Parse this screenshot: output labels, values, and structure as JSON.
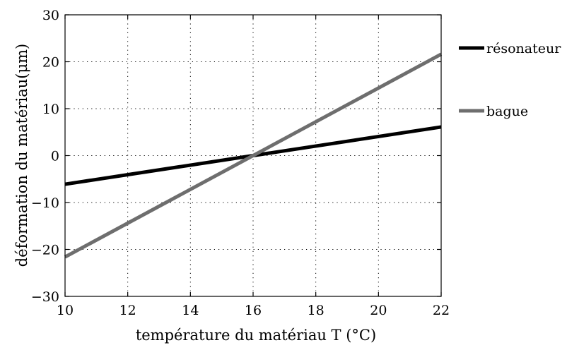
{
  "chart_data": {
    "type": "line",
    "xlabel": "température du matériau T (°C)",
    "ylabel": "déformation du matériau(μm)",
    "xlim": [
      10,
      22
    ],
    "ylim": [
      -30,
      30
    ],
    "xticks": [
      10,
      12,
      14,
      16,
      18,
      20,
      22
    ],
    "yticks": [
      -30,
      -20,
      -10,
      0,
      10,
      20,
      30
    ],
    "xtick_labels": [
      "10",
      "12",
      "14",
      "16",
      "18",
      "20",
      "22"
    ],
    "ytick_labels": [
      "−30",
      "−20",
      "−10",
      "0",
      "10",
      "20",
      "30"
    ],
    "grid": true,
    "legend_position": "right, outside plot",
    "series": [
      {
        "name": "résonateur",
        "color": "#000000",
        "x": [
          10,
          22
        ],
        "y": [
          -6.1,
          6.1
        ]
      },
      {
        "name": "bague",
        "color": "#6e6e6e",
        "x": [
          10,
          22
        ],
        "y": [
          -21.6,
          21.6
        ]
      }
    ]
  }
}
